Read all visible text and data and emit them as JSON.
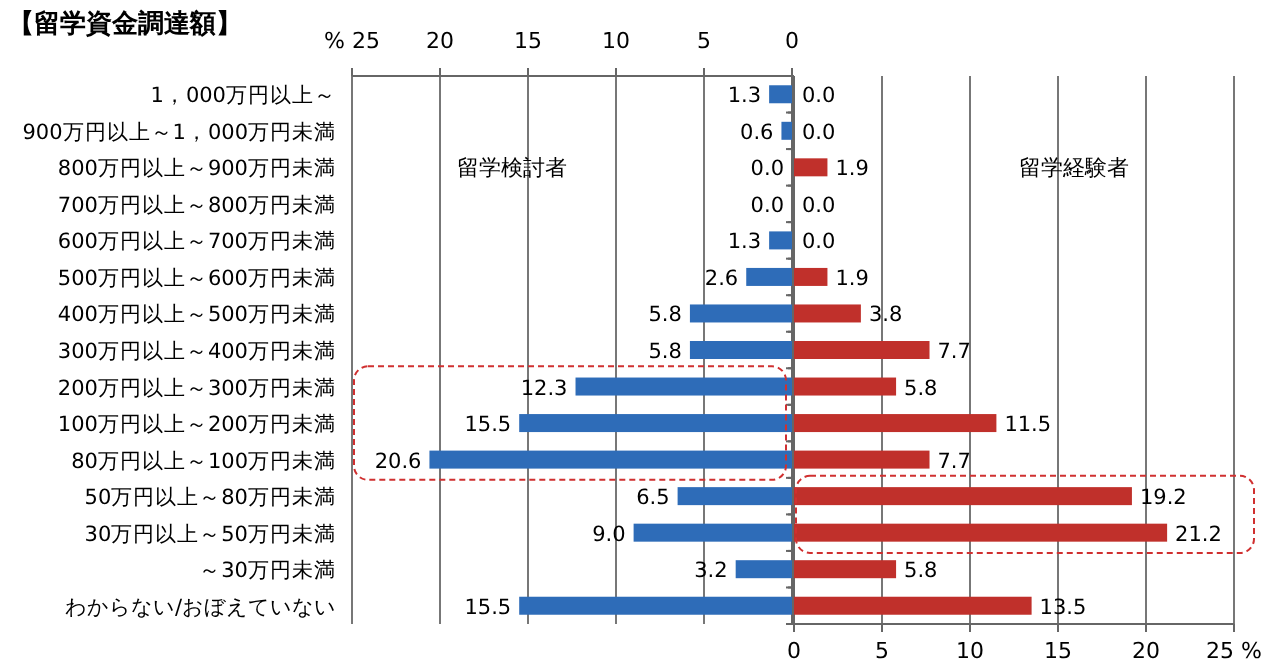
{
  "chart_data": [
    {
      "type": "bar",
      "orientation": "horizontal",
      "title": "【留学資金調達額】",
      "categories": [
        "1，000万円以上～",
        "900万円以上～1，000万円未満",
        "800万円以上～900万円未満",
        "700万円以上～800万円未満",
        "600万円以上～700万円未満",
        "500万円以上～600万円未満",
        "400万円以上～500万円未満",
        "300万円以上～400万円未満",
        "200万円以上～300万円未満",
        "100万円以上～200万円未満",
        "80万円以上～100万円未満",
        "50万円以上～80万円未満",
        "30万円以上～50万円未満",
        "～30万円未満",
        "わからない/おぼえていない"
      ],
      "series": [
        {
          "name": "留学検討者",
          "color": "#2e6cb8",
          "values": [
            1.3,
            0.6,
            0.0,
            0.0,
            1.3,
            2.6,
            5.8,
            5.8,
            12.3,
            15.5,
            20.6,
            6.5,
            9.0,
            3.2,
            15.5
          ],
          "value_labels": [
            "1.3",
            "0.6",
            "0.0",
            "0.0",
            "1.3",
            "2.6",
            "5.8",
            "5.8",
            "12.3",
            "15.5",
            "20.6",
            "6.5",
            "9.0",
            "3.2",
            "15.5"
          ]
        }
      ],
      "xlim": [
        25,
        0
      ],
      "xticks": [
        {
          "value": 25,
          "label": "% 25"
        },
        20,
        15,
        10,
        5,
        0
      ],
      "grid": "x"
    },
    {
      "type": "bar",
      "orientation": "horizontal",
      "categories": [
        null,
        null,
        null,
        null,
        null,
        null,
        null,
        null,
        null,
        null,
        null,
        null,
        null,
        null,
        null
      ],
      "series": [
        {
          "name": "留学経験者",
          "color": "#c0302b",
          "values": [
            0.0,
            0.0,
            1.9,
            0.0,
            0.0,
            1.9,
            3.8,
            7.7,
            5.8,
            11.5,
            7.7,
            19.2,
            21.2,
            5.8,
            13.5
          ],
          "value_labels": [
            "0.0",
            "0.0",
            "1.9",
            "0.0",
            "0.0",
            "1.9",
            "3.8",
            "7.7",
            "5.8",
            "11.5",
            "7.7",
            "19.2",
            "21.2",
            "5.8",
            "13.5"
          ]
        }
      ],
      "xlim": [
        0,
        25
      ],
      "xticks": [
        0,
        5,
        10,
        15,
        20,
        {
          "value": 25,
          "label": "25 %"
        }
      ],
      "grid": "x",
      "tick_labels": "x"
    }
  ]
}
